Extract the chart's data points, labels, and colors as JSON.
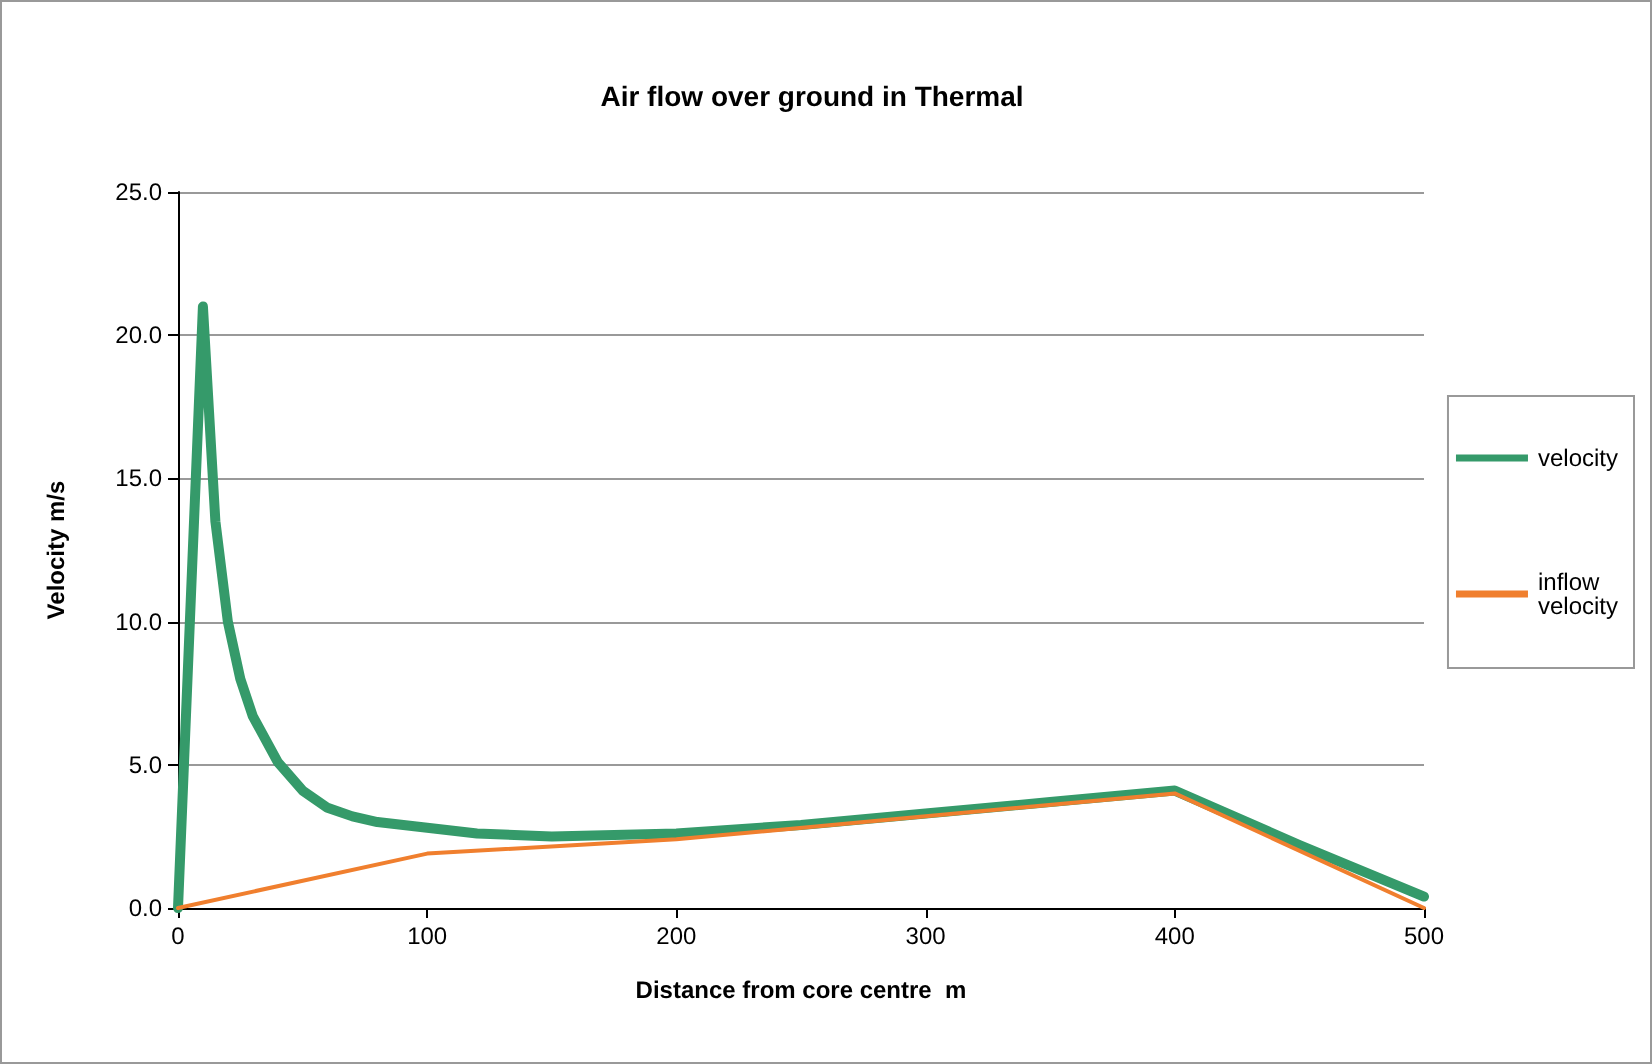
{
  "chart_data": {
    "type": "line",
    "title": "Air flow over ground in Thermal",
    "xlabel": "Distance from core centre  m",
    "ylabel": "Velocity m/s",
    "xlim": [
      0,
      500
    ],
    "xticks": [
      0,
      100,
      200,
      300,
      400,
      500
    ],
    "ylim": [
      0,
      25
    ],
    "yticks": [
      {
        "value": 0,
        "label": "0.0"
      },
      {
        "value": 5,
        "label": "5.0"
      },
      {
        "value": 10,
        "label": "10.0"
      },
      {
        "value": 15,
        "label": "15.0"
      },
      {
        "value": 20,
        "label": "20.0"
      },
      {
        "value": 25,
        "label": "25.0"
      }
    ],
    "grid": "y",
    "legend": "right",
    "marker": "none",
    "line_style": "solid",
    "series": [
      {
        "name": "velocity",
        "color": "#359a6a",
        "x": [
          0,
          10,
          12,
          15,
          20,
          25,
          30,
          40,
          50,
          60,
          70,
          80,
          100,
          120,
          150,
          200,
          250,
          300,
          350,
          400,
          450,
          500
        ],
        "values": [
          0,
          21,
          18,
          13.5,
          10,
          8,
          6.7,
          5.1,
          4.1,
          3.5,
          3.2,
          3.0,
          2.8,
          2.6,
          2.5,
          2.6,
          2.9,
          3.3,
          3.7,
          4.1,
          2.2,
          0.4
        ]
      },
      {
        "name": "inflow velocity",
        "color": "#f07f2e",
        "x": [
          0,
          100,
          200,
          300,
          400,
          500
        ],
        "values": [
          0,
          1.9,
          2.4,
          3.2,
          4.0,
          0
        ]
      }
    ]
  }
}
